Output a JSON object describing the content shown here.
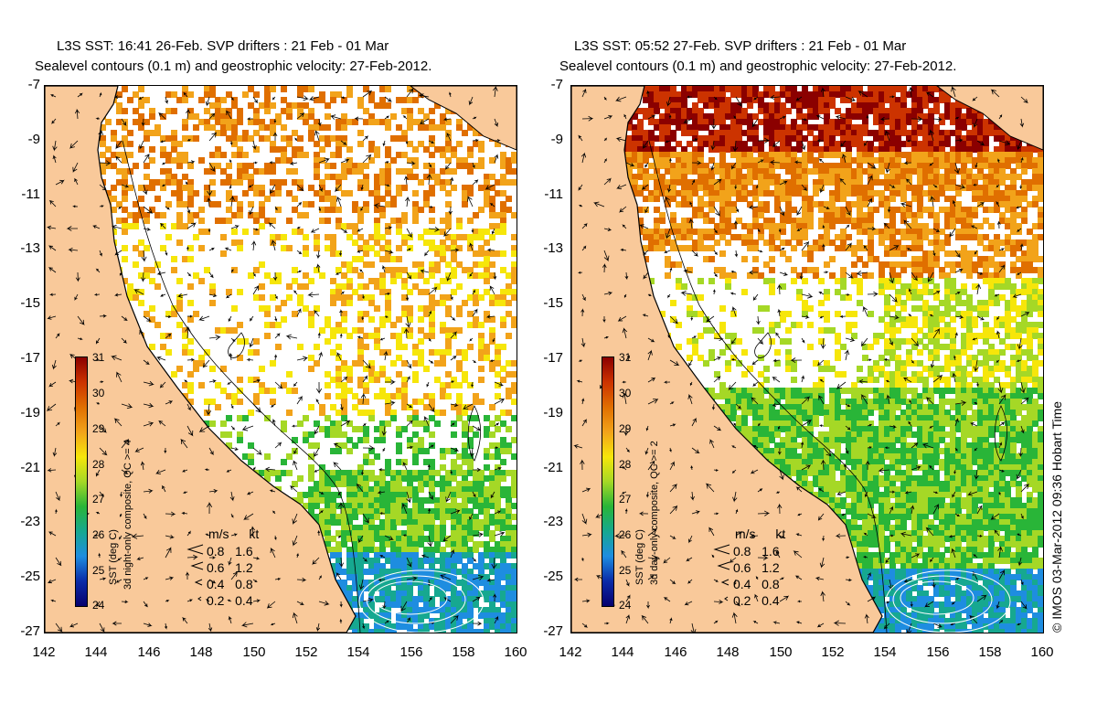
{
  "palette": {
    "land": "#f9c99a",
    "ocean_nodata": "#ffffff",
    "coast": "#000000",
    "arrow": "#000000"
  },
  "colorbar": {
    "ticks": [
      "31",
      "30",
      "29",
      "28",
      "27",
      "26",
      "25",
      "24"
    ],
    "stops": [
      "#8b0000",
      "#cc3300",
      "#e06f00",
      "#f2a31a",
      "#f6e60a",
      "#a5d826",
      "#29b538",
      "#16a890",
      "#1e8de0",
      "#0a2ba8",
      "#06006e"
    ]
  },
  "panels": [
    {
      "title_line1": "L3S SST: 16:41 26-Feb. SVP drifters : 21 Feb - 01 Mar",
      "title_line2": "Sealevel contours (0.1 m) and geostrophic velocity: 27-Feb-2012.",
      "colorbar_label_line1": "SST (deg C)",
      "colorbar_label_line2": "3d night-only composite, QC >= 4",
      "y_ticks": [
        "-7",
        "-9",
        "-11",
        "-13",
        "-15",
        "-17",
        "-19",
        "-21",
        "-23",
        "-25",
        "-27"
      ],
      "x_ticks": [
        "142",
        "144",
        "146",
        "148",
        "150",
        "152",
        "154",
        "156",
        "158",
        "160"
      ],
      "legend": {
        "header_ms": "m/s",
        "header_kt": "kt",
        "rows": [
          {
            "ms": "0.8",
            "kt": "1.6"
          },
          {
            "ms": "0.6",
            "kt": "1.2"
          },
          {
            "ms": "0.4",
            "kt": "0.8"
          },
          {
            "ms": "0.2",
            "kt": "0.4"
          }
        ]
      }
    },
    {
      "title_line1": "L3S SST: 05:52 27-Feb. SVP drifters : 21 Feb - 01 Mar",
      "title_line2": "Sealevel contours (0.1 m) and geostrophic velocity: 27-Feb-2012.",
      "colorbar_label_line1": "SST (deg C)",
      "colorbar_label_line2": "3d day-only composite, QC >= 2",
      "y_ticks": [
        "-7",
        "-9",
        "-11",
        "-13",
        "-15",
        "-17",
        "-19",
        "-21",
        "-23",
        "-25",
        "-27"
      ],
      "x_ticks": [
        "142",
        "144",
        "146",
        "148",
        "150",
        "152",
        "154",
        "156",
        "158",
        "160"
      ],
      "legend": {
        "header_ms": "m/s",
        "header_kt": "kt",
        "rows": [
          {
            "ms": "0.8",
            "kt": "1.6"
          },
          {
            "ms": "0.6",
            "kt": "1.2"
          },
          {
            "ms": "0.4",
            "kt": "0.8"
          },
          {
            "ms": "0.2",
            "kt": "0.4"
          }
        ]
      }
    }
  ],
  "credit": "© IMOS 03-Mar-2012 09:36 Hobart Time"
}
